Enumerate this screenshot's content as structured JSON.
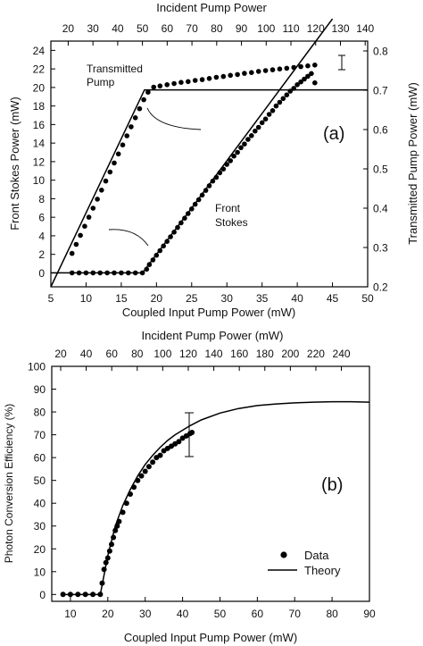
{
  "chart_data": [
    {
      "panel": "(a)",
      "type": "line",
      "xlabel": "Coupled Input Pump Power (mW)",
      "x_ticks": [
        5,
        10,
        15,
        20,
        25,
        30,
        35,
        40,
        45,
        50
      ],
      "xlim": [
        5,
        50
      ],
      "ylabel": "Front Stokes Power (mW)",
      "y_ticks": [
        0,
        2,
        4,
        6,
        8,
        10,
        12,
        14,
        16,
        18,
        20,
        22,
        24
      ],
      "ylim": [
        -1.5,
        25
      ],
      "top_axis_label": "Incident Pump Power",
      "top_ticks": [
        20,
        30,
        40,
        50,
        60,
        70,
        80,
        90,
        100,
        110,
        120,
        130,
        140
      ],
      "top_range": [
        13,
        141
      ],
      "right_axis_label": "Transmitted Pump Power (mW)",
      "right_ticks": [
        0.2,
        0.3,
        0.4,
        0.5,
        0.6,
        0.7,
        0.8
      ],
      "right_range": [
        0.2,
        0.825
      ],
      "annotations": [
        "Transmitted Pump",
        "Front Stokes"
      ],
      "series": [
        {
          "marker": "circle",
          "axis": "right",
          "x": [
            8.0,
            8.6,
            9.2,
            9.8,
            10.4,
            11.0,
            11.6,
            12.2,
            12.8,
            13.4,
            14.0,
            14.6,
            15.2,
            15.8,
            16.4,
            17.0,
            17.6,
            18.2,
            18.8,
            19.6,
            20.5,
            21.5,
            22.5,
            23.5,
            24.5,
            25.5,
            26.5,
            27.5,
            28.5,
            29.5,
            30.5,
            31.5,
            32.5,
            33.5,
            34.5,
            35.5,
            36.5,
            37.5,
            38.5,
            39.5,
            40.5,
            41.5,
            42.5
          ],
          "y": [
            0.285,
            0.308,
            0.331,
            0.354,
            0.377,
            0.4,
            0.423,
            0.446,
            0.469,
            0.492,
            0.515,
            0.538,
            0.561,
            0.584,
            0.607,
            0.63,
            0.653,
            0.676,
            0.695,
            0.708,
            0.711,
            0.714,
            0.717,
            0.72,
            0.722,
            0.725,
            0.727,
            0.73,
            0.733,
            0.735,
            0.738,
            0.74,
            0.743,
            0.745,
            0.748,
            0.75,
            0.752,
            0.754,
            0.756,
            0.758,
            0.76,
            0.762,
            0.764
          ]
        },
        {
          "marker": "circle",
          "axis": "left",
          "x": [
            8.0,
            9.0,
            10.0,
            11.0,
            12.0,
            13.0,
            14.0,
            15.0,
            16.0,
            17.0,
            18.0,
            18.6,
            19.0,
            19.5,
            20.0,
            20.5,
            21.0,
            21.5,
            22.0,
            22.5,
            23.0,
            23.5,
            24.0,
            24.5,
            25.0,
            25.5,
            26.0,
            26.5,
            27.0,
            27.5,
            28.0,
            28.5,
            29.0,
            29.5,
            30.0,
            30.5,
            31.0,
            31.5,
            32.0,
            32.5,
            33.0,
            33.5,
            34.0,
            34.5,
            35.0,
            35.5,
            36.0,
            36.5,
            37.0,
            37.5,
            38.0,
            38.5,
            39.0,
            39.5,
            40.0,
            40.5,
            41.0,
            41.5,
            42.0,
            42.5
          ],
          "y": [
            0.0,
            0.0,
            0.0,
            0.0,
            0.0,
            0.0,
            0.0,
            0.0,
            0.0,
            0.0,
            0.0,
            0.4,
            0.9,
            1.4,
            1.9,
            2.4,
            2.9,
            3.4,
            3.9,
            4.4,
            4.9,
            5.4,
            5.9,
            6.4,
            6.9,
            7.4,
            7.9,
            8.4,
            8.9,
            9.4,
            9.9,
            10.3,
            10.8,
            11.2,
            11.7,
            12.1,
            12.6,
            13.0,
            13.5,
            13.9,
            14.4,
            14.8,
            15.3,
            15.7,
            16.2,
            16.6,
            17.1,
            17.5,
            18.0,
            18.4,
            18.8,
            19.2,
            19.6,
            19.9,
            20.3,
            20.6,
            20.9,
            21.2,
            21.5,
            20.5
          ]
        },
        {
          "marker": "none",
          "axis": "left",
          "x": [
            5,
            18,
            20,
            25,
            30,
            35,
            40,
            45
          ],
          "y": [
            0,
            0,
            2.0,
            7.0,
            12.1,
            17.2,
            22.3,
            27.4
          ]
        },
        {
          "marker": "none",
          "axis": "right",
          "x": [
            5,
            18.3,
            50
          ],
          "y": [
            0.2,
            0.701,
            0.701
          ]
        }
      ]
    },
    {
      "panel": "(b)",
      "type": "line",
      "xlabel": "Coupled Input Pump Power (mW)",
      "x_ticks": [
        10,
        20,
        30,
        40,
        50,
        60,
        70,
        80,
        90
      ],
      "xlim": [
        5,
        90
      ],
      "ylabel": "Photon Conversion Efficiency (%)",
      "y_ticks": [
        0,
        10,
        20,
        30,
        40,
        50,
        60,
        70,
        80,
        90,
        100
      ],
      "ylim": [
        -3,
        100
      ],
      "top_axis_label": "Incident Pump Power (mW)",
      "top_ticks": [
        20,
        40,
        60,
        80,
        100,
        120,
        140,
        160,
        180,
        200,
        220,
        240
      ],
      "top_range": [
        13,
        262
      ],
      "legend": [
        "Data",
        "Theory"
      ],
      "legend_position": "bottom-right",
      "series": [
        {
          "name": "Data",
          "marker": "circle",
          "x": [
            8,
            10,
            12,
            14,
            16,
            18,
            18.5,
            19,
            19.5,
            20,
            20.5,
            21,
            21.5,
            22,
            22.5,
            23,
            24,
            25,
            26,
            27,
            28,
            29,
            30,
            31,
            32,
            33,
            34,
            35,
            36,
            37,
            38,
            39,
            40,
            41,
            42,
            42.5
          ],
          "y": [
            0,
            0,
            0,
            0,
            0,
            0,
            5,
            11,
            14,
            16,
            19,
            22,
            25,
            28,
            30,
            32,
            36,
            40,
            44,
            47,
            50,
            52,
            54,
            56,
            58,
            60,
            61,
            63,
            64,
            65,
            66,
            67,
            68.5,
            69.5,
            70.5,
            71
          ]
        },
        {
          "name": "Theory",
          "marker": "none",
          "x": [
            18,
            20,
            22,
            24,
            26,
            28,
            30,
            32,
            34,
            36,
            38,
            40,
            42,
            45,
            50,
            55,
            60,
            65,
            70,
            75,
            80,
            85,
            90
          ],
          "y": [
            0,
            17,
            30,
            39,
            46,
            52,
            57,
            61,
            64.5,
            67.5,
            70,
            72,
            74,
            76.5,
            79.5,
            81.5,
            82.8,
            83.5,
            84,
            84.3,
            84.5,
            84.5,
            84.3
          ]
        }
      ]
    }
  ],
  "panel_a": {
    "label": "(a)",
    "title_top": "Incident Pump Power",
    "xlabel": "Coupled Input Pump Power (mW)",
    "ylabel_left": "Front Stokes Power (mW)",
    "ylabel_right": "Transmitted Pump Power (mW)",
    "ann_transmitted_1": "Transmitted",
    "ann_transmitted_2": "Pump",
    "ann_front_1": "Front",
    "ann_front_2": "Stokes"
  },
  "panel_b": {
    "label": "(b)",
    "title_top": "Incident Pump Power (mW)",
    "xlabel": "Coupled Input Pump Power (mW)",
    "ylabel": "Photon Conversion Efficiency (%)",
    "legend_data": "Data",
    "legend_theory": "Theory"
  }
}
